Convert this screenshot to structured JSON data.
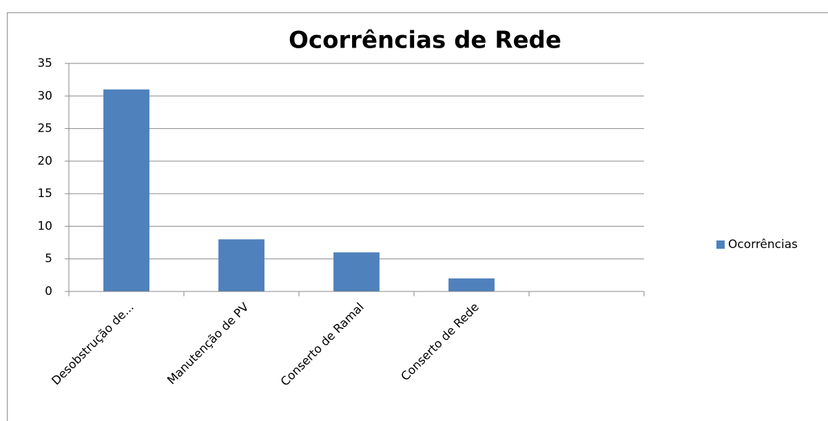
{
  "chart_data": {
    "type": "bar",
    "title": "Ocorrências de Rede",
    "categories": [
      "Desobstrução de...",
      "Manutenção de PV",
      "Conserto de Ramal",
      "Conserto de Rede",
      null
    ],
    "series": [
      {
        "name": "Ocorrências",
        "color": "#4f81bd",
        "values": [
          31,
          8,
          6,
          2,
          null
        ]
      }
    ],
    "ylim": [
      0,
      35
    ],
    "yticks": [
      0,
      5,
      10,
      15,
      20,
      25,
      30,
      35
    ],
    "grid": true,
    "legend": "right"
  }
}
